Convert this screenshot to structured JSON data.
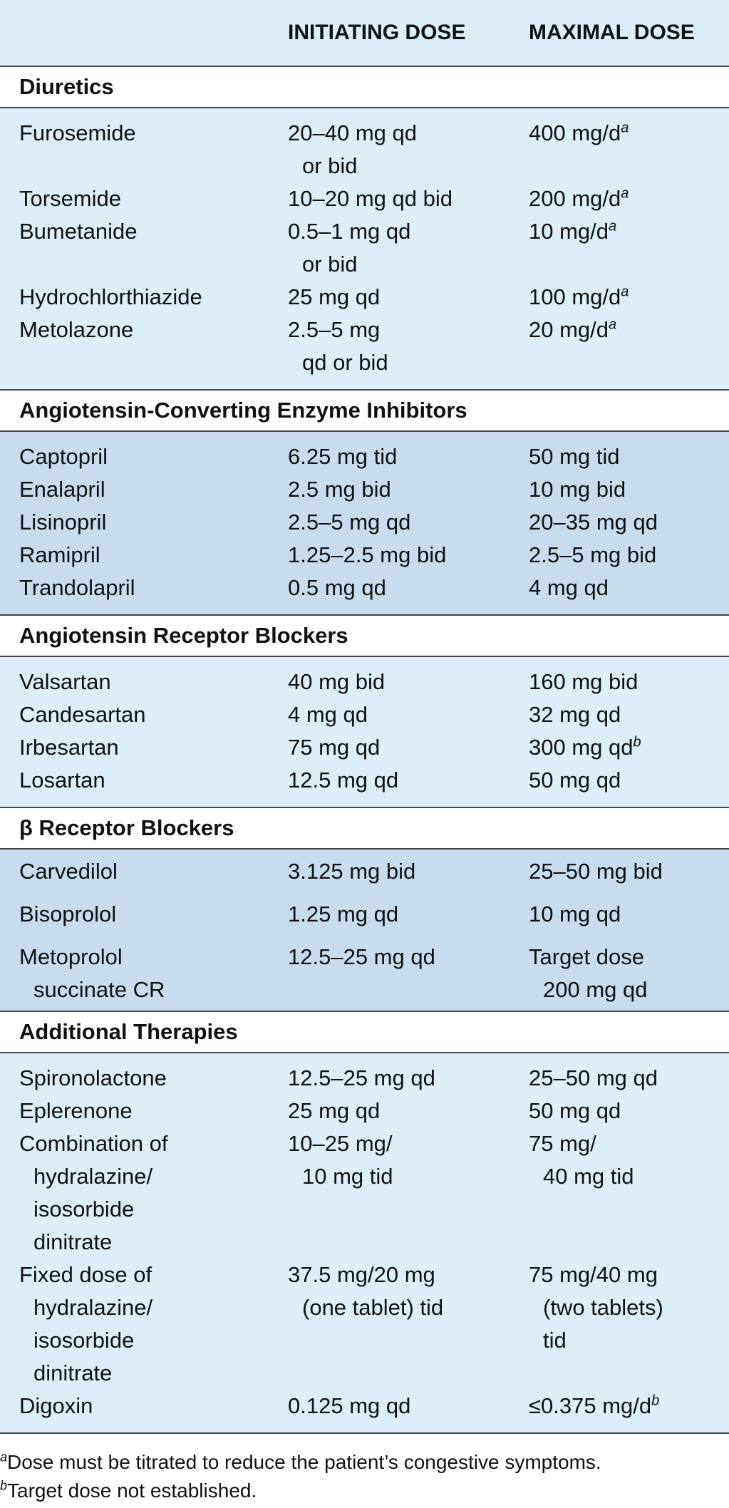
{
  "table": {
    "columns": [
      "INITIATING DOSE",
      "MAXIMAL DOSE"
    ],
    "sections": [
      {
        "title": "Diuretics",
        "rows": [
          {
            "drug": [
              "Furosemide"
            ],
            "initiating": [
              "20–40 mg qd",
              "or bid"
            ],
            "maximal": [
              "400 mg/d"
            ],
            "maximal_note": "a"
          },
          {
            "drug": [
              "Torsemide"
            ],
            "initiating": [
              "10–20 mg qd bid"
            ],
            "maximal": [
              "200 mg/d"
            ],
            "maximal_note": "a"
          },
          {
            "drug": [
              "Bumetanide"
            ],
            "initiating": [
              "0.5–1 mg qd",
              "or bid"
            ],
            "maximal": [
              "10 mg/d"
            ],
            "maximal_note": "a"
          },
          {
            "drug": [
              "Hydrochlorthiazide"
            ],
            "initiating": [
              "25 mg qd"
            ],
            "maximal": [
              "100 mg/d"
            ],
            "maximal_note": "a"
          },
          {
            "drug": [
              "Metolazone"
            ],
            "initiating": [
              "2.5–5 mg",
              "qd or bid"
            ],
            "maximal": [
              "20 mg/d"
            ],
            "maximal_note": "a"
          }
        ]
      },
      {
        "title": "Angiotensin-Converting Enzyme Inhibitors",
        "rows": [
          {
            "drug": [
              "Captopril"
            ],
            "initiating": [
              "6.25 mg tid"
            ],
            "maximal": [
              "50 mg tid"
            ]
          },
          {
            "drug": [
              "Enalapril"
            ],
            "initiating": [
              "2.5 mg bid"
            ],
            "maximal": [
              "10 mg bid"
            ]
          },
          {
            "drug": [
              "Lisinopril"
            ],
            "initiating": [
              "2.5–5 mg qd"
            ],
            "maximal": [
              "20–35 mg qd"
            ]
          },
          {
            "drug": [
              "Ramipril"
            ],
            "initiating": [
              "1.25–2.5 mg bid"
            ],
            "maximal": [
              "2.5–5 mg bid"
            ]
          },
          {
            "drug": [
              "Trandolapril"
            ],
            "initiating": [
              "0.5 mg qd"
            ],
            "maximal": [
              "4 mg qd"
            ]
          }
        ]
      },
      {
        "title": "Angiotensin Receptor Blockers",
        "rows": [
          {
            "drug": [
              "Valsartan"
            ],
            "initiating": [
              "40 mg bid"
            ],
            "maximal": [
              "160 mg bid"
            ]
          },
          {
            "drug": [
              "Candesartan"
            ],
            "initiating": [
              "4 mg qd"
            ],
            "maximal": [
              "32 mg qd"
            ]
          },
          {
            "drug": [
              "Irbesartan"
            ],
            "initiating": [
              "75 mg qd"
            ],
            "maximal": [
              "300 mg qd"
            ],
            "maximal_note": "b"
          },
          {
            "drug": [
              "Losartan"
            ],
            "initiating": [
              "12.5 mg qd"
            ],
            "maximal": [
              "50 mg qd"
            ]
          }
        ]
      },
      {
        "title": "β Receptor Blockers",
        "rows": [
          {
            "drug": [
              "Carvedilol"
            ],
            "initiating": [
              "3.125 mg bid"
            ],
            "maximal": [
              "25–50 mg bid"
            ]
          },
          {
            "drug": [
              "Bisoprolol"
            ],
            "initiating": [
              "1.25 mg qd"
            ],
            "maximal": [
              "10 mg qd"
            ]
          },
          {
            "drug": [
              "Metoprolol",
              "succinate CR"
            ],
            "initiating": [
              "12.5–25 mg qd"
            ],
            "maximal": [
              "Target dose",
              "200 mg qd"
            ]
          }
        ]
      },
      {
        "title": "Additional Therapies",
        "rows": [
          {
            "drug": [
              "Spironolactone"
            ],
            "initiating": [
              "12.5–25 mg qd"
            ],
            "maximal": [
              "25–50 mg qd"
            ]
          },
          {
            "drug": [
              "Eplerenone"
            ],
            "initiating": [
              "25 mg qd"
            ],
            "maximal": [
              "50 mg qd"
            ]
          },
          {
            "drug": [
              "Combination of",
              "hydralazine/",
              "isosorbide",
              "dinitrate"
            ],
            "initiating": [
              "10–25 mg/",
              "10 mg tid"
            ],
            "maximal": [
              "75 mg/",
              "40 mg tid"
            ]
          },
          {
            "drug": [
              "Fixed dose of",
              "hydralazine/",
              "isosorbide",
              "dinitrate"
            ],
            "initiating": [
              "37.5 mg/20 mg",
              "(one tablet) tid"
            ],
            "maximal": [
              "75 mg/40 mg",
              "(two tablets)",
              "tid"
            ]
          },
          {
            "drug": [
              "Digoxin"
            ],
            "initiating": [
              "0.125 mg qd"
            ],
            "maximal": [
              "≤0.375 mg/d"
            ],
            "maximal_note": "b"
          }
        ]
      }
    ],
    "footnotes": [
      {
        "mark": "a",
        "text": "Dose must be titrated to reduce the patient’s congestive symptoms."
      },
      {
        "mark": "b",
        "text": "Target dose not established."
      }
    ]
  }
}
